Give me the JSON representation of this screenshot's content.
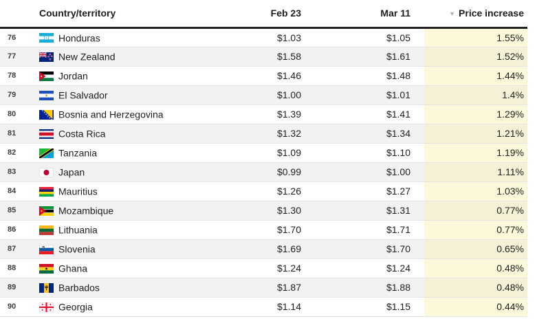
{
  "table": {
    "headers": {
      "rank": "",
      "country": "Country/territory",
      "feb23": "Feb 23",
      "mar11": "Mar 11",
      "price_increase": "Price increase"
    },
    "sort": {
      "column": "price_increase",
      "direction": "descending"
    },
    "rows": [
      {
        "rank": "76",
        "flag": "honduras",
        "country": "Honduras",
        "feb23": "$1.03",
        "mar11": "$1.05",
        "increase": "1.55%"
      },
      {
        "rank": "77",
        "flag": "new-zealand",
        "country": "New Zealand",
        "feb23": "$1.58",
        "mar11": "$1.61",
        "increase": "1.52%"
      },
      {
        "rank": "78",
        "flag": "jordan",
        "country": "Jordan",
        "feb23": "$1.46",
        "mar11": "$1.48",
        "increase": "1.44%"
      },
      {
        "rank": "79",
        "flag": "el-salvador",
        "country": "El Salvador",
        "feb23": "$1.00",
        "mar11": "$1.01",
        "increase": "1.4%"
      },
      {
        "rank": "80",
        "flag": "bosnia",
        "country": "Bosnia and Herzegovina",
        "feb23": "$1.39",
        "mar11": "$1.41",
        "increase": "1.29%"
      },
      {
        "rank": "81",
        "flag": "costa-rica",
        "country": "Costa Rica",
        "feb23": "$1.32",
        "mar11": "$1.34",
        "increase": "1.21%"
      },
      {
        "rank": "82",
        "flag": "tanzania",
        "country": "Tanzania",
        "feb23": "$1.09",
        "mar11": "$1.10",
        "increase": "1.19%"
      },
      {
        "rank": "83",
        "flag": "japan",
        "country": "Japan",
        "feb23": "$0.99",
        "mar11": "$1.00",
        "increase": "1.11%"
      },
      {
        "rank": "84",
        "flag": "mauritius",
        "country": "Mauritius",
        "feb23": "$1.26",
        "mar11": "$1.27",
        "increase": "1.03%"
      },
      {
        "rank": "85",
        "flag": "mozambique",
        "country": "Mozambique",
        "feb23": "$1.30",
        "mar11": "$1.31",
        "increase": "0.77%"
      },
      {
        "rank": "86",
        "flag": "lithuania",
        "country": "Lithuania",
        "feb23": "$1.70",
        "mar11": "$1.71",
        "increase": "0.77%"
      },
      {
        "rank": "87",
        "flag": "slovenia",
        "country": "Slovenia",
        "feb23": "$1.69",
        "mar11": "$1.70",
        "increase": "0.65%"
      },
      {
        "rank": "88",
        "flag": "ghana",
        "country": "Ghana",
        "feb23": "$1.24",
        "mar11": "$1.24",
        "increase": "0.48%"
      },
      {
        "rank": "89",
        "flag": "barbados",
        "country": "Barbados",
        "feb23": "$1.87",
        "mar11": "$1.88",
        "increase": "0.48%"
      },
      {
        "rank": "90",
        "flag": "georgia",
        "country": "Georgia",
        "feb23": "$1.14",
        "mar11": "$1.15",
        "increase": "0.44%"
      }
    ]
  },
  "icons": {
    "sort_desc": "▼"
  },
  "colors": {
    "highlight_column_odd": "#fcf9db",
    "highlight_column_even": "#f4f1d7",
    "alt_row": "#f2f2f2",
    "header_rule": "#212121"
  }
}
